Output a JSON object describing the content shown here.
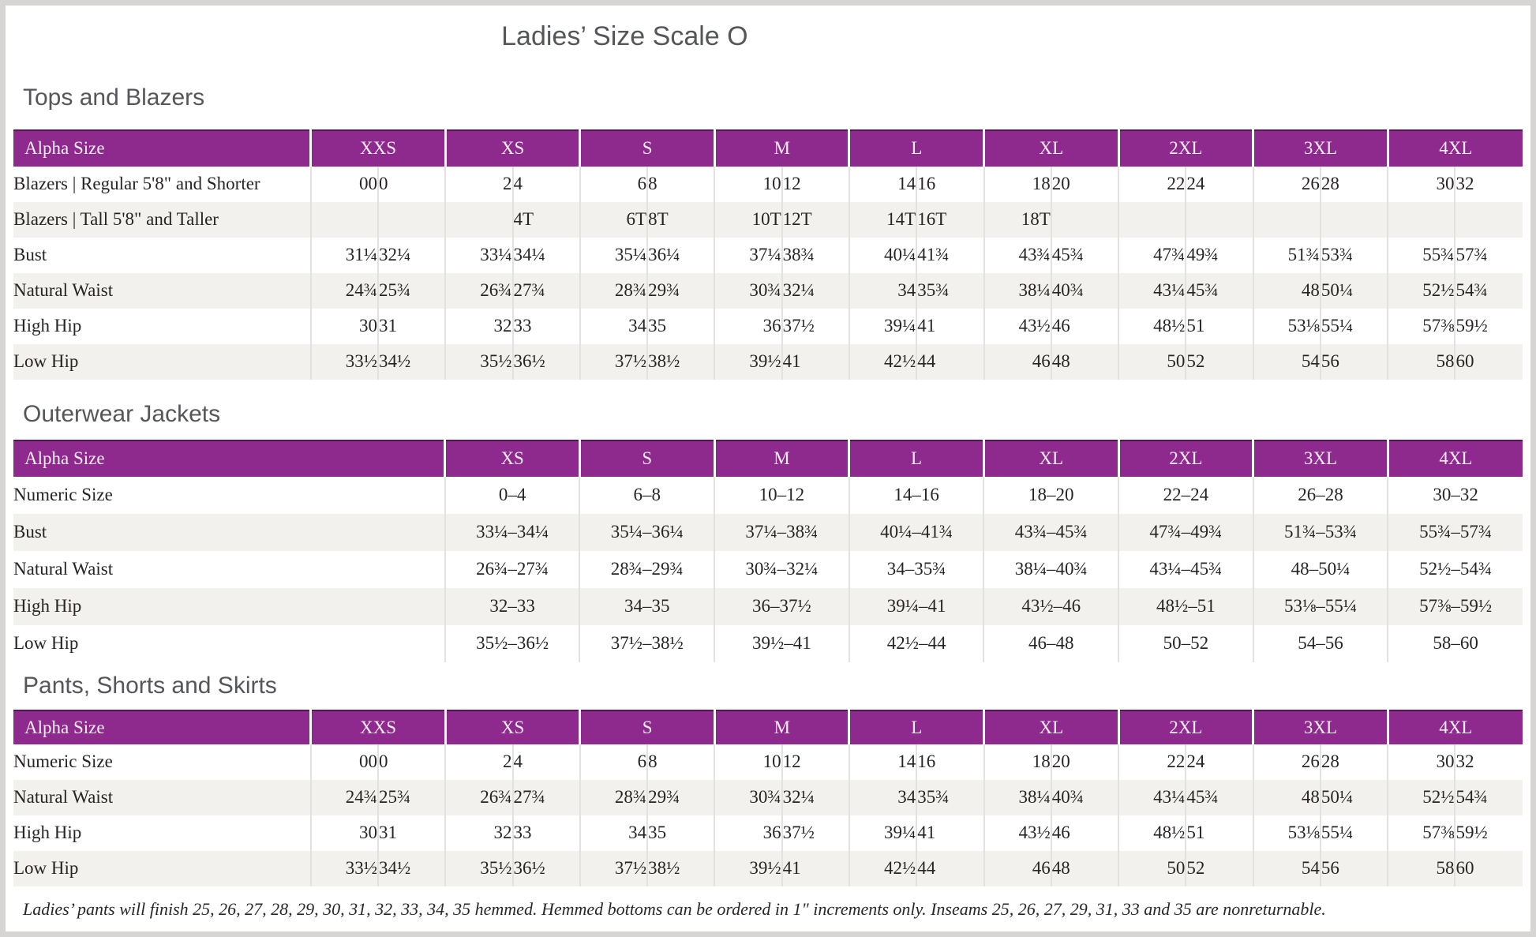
{
  "page": {
    "title": "Ladies’ Size Scale O",
    "footnote": "Ladies’ pants will finish 25, 26, 27, 28, 29, 30, 31, 32, 33, 34, 35 hemmed. Hemmed bottoms can be ordered in 1\" increments only. Inseams 25, 26, 27, 29, 31, 33 and 35 are nonreturnable."
  },
  "colors": {
    "header_purple": "#8e2a8e",
    "header_top_edge": "#521852",
    "header_text": "#f8eef6",
    "row_stripe": "#f2f1ee",
    "divider": "#e4e2df",
    "heading_gray": "#55565a",
    "body_text": "#282425",
    "page_frame": "#d7d5d3"
  },
  "tables": {
    "tops": {
      "section_title": "Tops and Blazers",
      "header_label": "Alpha Size",
      "sizes": [
        "XXS",
        "XS",
        "S",
        "M",
        "L",
        "XL",
        "2XL",
        "3XL",
        "4XL"
      ],
      "rows": [
        {
          "label": "Blazers | Regular 5'8\" and Shorter",
          "cells": [
            "00",
            "0",
            "2",
            "4",
            "6",
            "8",
            "10",
            "12",
            "14",
            "16",
            "18",
            "20",
            "22",
            "24",
            "26",
            "28",
            "30",
            "32"
          ]
        },
        {
          "label": "Blazers | Tall 5'8\" and Taller",
          "cells": [
            "",
            "",
            "",
            "4T",
            "6T",
            "8T",
            "10T",
            "12T",
            "14T",
            "16T",
            "18T",
            "",
            "",
            "",
            "",
            "",
            "",
            ""
          ]
        },
        {
          "label": "Bust",
          "cells": [
            "31¼",
            "32¼",
            "33¼",
            "34¼",
            "35¼",
            "36¼",
            "37¼",
            "38¾",
            "40¼",
            "41¾",
            "43¾",
            "45¾",
            "47¾",
            "49¾",
            "51¾",
            "53¾",
            "55¾",
            "57¾"
          ]
        },
        {
          "label": "Natural Waist",
          "cells": [
            "24¾",
            "25¾",
            "26¾",
            "27¾",
            "28¾",
            "29¾",
            "30¾",
            "32¼",
            "34",
            "35¾",
            "38¼",
            "40¾",
            "43¼",
            "45¾",
            "48",
            "50¼",
            "52½",
            "54¾"
          ]
        },
        {
          "label": "High Hip",
          "cells": [
            "30",
            "31",
            "32",
            "33",
            "34",
            "35",
            "36",
            "37½",
            "39¼",
            "41",
            "43½",
            "46",
            "48½",
            "51",
            "53⅛",
            "55¼",
            "57⅜",
            "59½"
          ]
        },
        {
          "label": "Low Hip",
          "cells": [
            "33½",
            "34½",
            "35½",
            "36½",
            "37½",
            "38½",
            "39½",
            "41",
            "42½",
            "44",
            "46",
            "48",
            "50",
            "52",
            "54",
            "56",
            "58",
            "60"
          ]
        }
      ]
    },
    "outerwear": {
      "section_title": "Outerwear Jackets",
      "header_label": "Alpha Size",
      "sizes": [
        "XS",
        "S",
        "M",
        "L",
        "XL",
        "2XL",
        "3XL",
        "4XL"
      ],
      "rows": [
        {
          "label": "Numeric Size",
          "cells": [
            "0–4",
            "6–8",
            "10–12",
            "14–16",
            "18–20",
            "22–24",
            "26–28",
            "30–32"
          ]
        },
        {
          "label": "Bust",
          "cells": [
            "33¼–34¼",
            "35¼–36¼",
            "37¼–38¾",
            "40¼–41¾",
            "43¾–45¾",
            "47¾–49¾",
            "51¾–53¾",
            "55¾–57¾"
          ]
        },
        {
          "label": "Natural Waist",
          "cells": [
            "26¾–27¾",
            "28¾–29¾",
            "30¾–32¼",
            "34–35¾",
            "38¼–40¾",
            "43¼–45¾",
            "48–50¼",
            "52½–54¾"
          ]
        },
        {
          "label": "High Hip",
          "cells": [
            "32–33",
            "34–35",
            "36–37½",
            "39¼–41",
            "43½–46",
            "48½–51",
            "53⅛–55¼",
            "57⅜–59½"
          ]
        },
        {
          "label": "Low Hip",
          "cells": [
            "35½–36½",
            "37½–38½",
            "39½–41",
            "42½–44",
            "46–48",
            "50–52",
            "54–56",
            "58–60"
          ]
        }
      ]
    },
    "pants": {
      "section_title": "Pants, Shorts and Skirts",
      "header_label": "Alpha Size",
      "sizes": [
        "XXS",
        "XS",
        "S",
        "M",
        "L",
        "XL",
        "2XL",
        "3XL",
        "4XL"
      ],
      "rows": [
        {
          "label": "Numeric Size",
          "cells": [
            "00",
            "0",
            "2",
            "4",
            "6",
            "8",
            "10",
            "12",
            "14",
            "16",
            "18",
            "20",
            "22",
            "24",
            "26",
            "28",
            "30",
            "32"
          ]
        },
        {
          "label": "Natural Waist",
          "cells": [
            "24¾",
            "25¾",
            "26¾",
            "27¾",
            "28¾",
            "29¾",
            "30¾",
            "32¼",
            "34",
            "35¾",
            "38¼",
            "40¾",
            "43¼",
            "45¾",
            "48",
            "50¼",
            "52½",
            "54¾"
          ]
        },
        {
          "label": "High Hip",
          "cells": [
            "30",
            "31",
            "32",
            "33",
            "34",
            "35",
            "36",
            "37½",
            "39¼",
            "41",
            "43½",
            "46",
            "48½",
            "51",
            "53⅛",
            "55¼",
            "57⅜",
            "59½"
          ]
        },
        {
          "label": "Low Hip",
          "cells": [
            "33½",
            "34½",
            "35½",
            "36½",
            "37½",
            "38½",
            "39½",
            "41",
            "42½",
            "44",
            "46",
            "48",
            "50",
            "52",
            "54",
            "56",
            "58",
            "60"
          ]
        }
      ]
    }
  }
}
